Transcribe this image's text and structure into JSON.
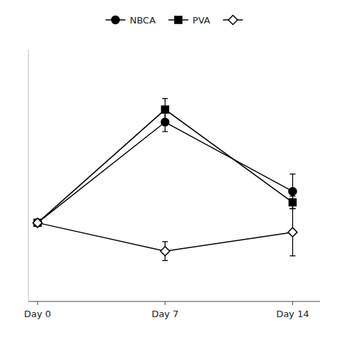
{
  "chart_data": {
    "type": "line",
    "x": [
      0,
      7,
      14
    ],
    "xlim": [
      -0.5,
      15.5
    ],
    "xticks": [
      {
        "value": 0,
        "label": "Day 0"
      },
      {
        "value": 7,
        "label": "Day 7"
      },
      {
        "value": 14,
        "label": "Day 14"
      }
    ],
    "ylim": [
      1.5,
      9.5
    ],
    "tick_labels": "x",
    "grid": false,
    "legend": "top",
    "series": [
      {
        "name": "NBCA",
        "color": "#000000",
        "marker": "circle",
        "line_style": "solid",
        "values": [
          4.0,
          7.2,
          5.0
        ],
        "errors": [
          0.0,
          0.3,
          0.55
        ]
      },
      {
        "name": "PVA",
        "color": "#000000",
        "marker": "square",
        "line_style": "solid",
        "values": [
          4.0,
          7.6,
          4.65
        ],
        "errors": [
          0.0,
          0.35,
          0.2
        ]
      },
      {
        "color": "#000000",
        "marker": "open-diamond",
        "line_style": "solid",
        "values": [
          4.0,
          3.1,
          3.7
        ],
        "errors": [
          0.0,
          0.3,
          0.75
        ]
      }
    ]
  }
}
